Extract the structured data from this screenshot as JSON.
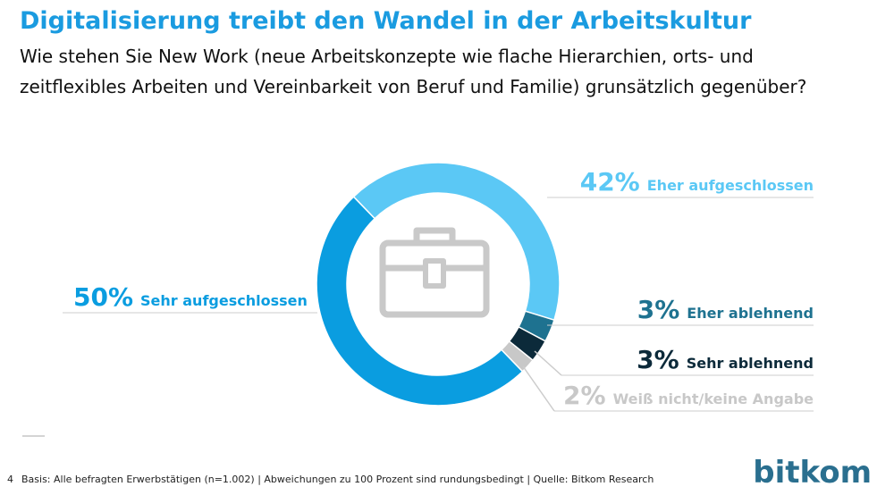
{
  "title": "Digitalisierung treibt den Wandel in der Arbeitskultur",
  "subtitle": [
    "Wie stehen Sie New Work (neue Arbeitskonzepte wie flache Hierarchien, orts- und",
    "zeitflexibles Arbeiten und Vereinbarkeit von Beruf und Familie) grunsätzlich gegenüber?"
  ],
  "chart_data": {
    "type": "donut",
    "categories": [
      "Eher aufgeschlossen",
      "Eher ablehnend",
      "Sehr ablehnend",
      "Weiß nicht/keine Angabe",
      "Sehr aufgeschlossen"
    ],
    "values": [
      42,
      3,
      3,
      2,
      50
    ],
    "value_labels": [
      "42%",
      "3%",
      "3%",
      "2%",
      "50%"
    ],
    "colors": [
      "#5bc8f5",
      "#1e7290",
      "#0c2a3a",
      "#c8c8c8",
      "#0a9de0"
    ]
  },
  "page_number": "4",
  "footnote": "Basis: Alle befragten Erwerbstätigen (n=1.002) | Abweichungen zu 100 Prozent sind rundungsbedingt | Quelle: Bitkom Research",
  "logo": "bitkom"
}
